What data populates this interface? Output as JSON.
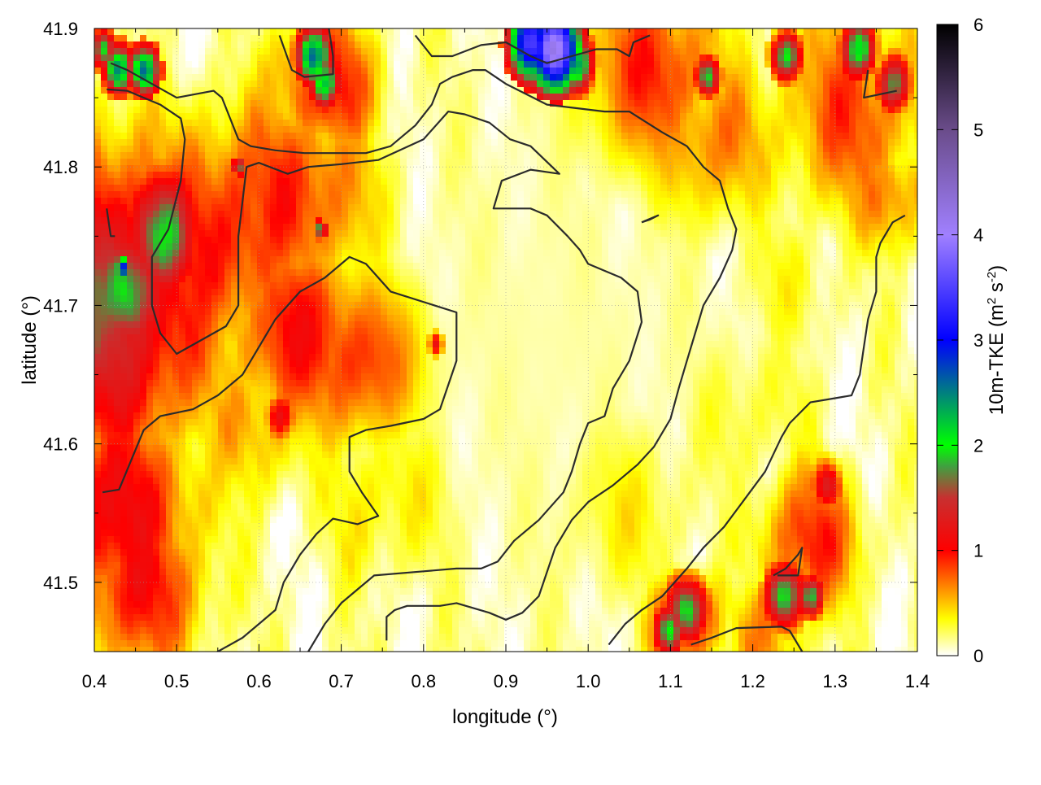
{
  "chart_data": {
    "type": "heatmap",
    "title": "",
    "xlabel": "longitude (°)",
    "ylabel": "latitude (°)",
    "colorbar_label_main": "10m-TKE (m",
    "colorbar_label_sup1": "2",
    "colorbar_label_mid": " s",
    "colorbar_label_sup2": "-2",
    "colorbar_label_end": ")",
    "xlim": [
      0.4,
      1.4
    ],
    "ylim": [
      41.45,
      41.9
    ],
    "clim": [
      0,
      6
    ],
    "grid": true,
    "x_ticks": [
      "0.4",
      "0.5",
      "0.6",
      "0.7",
      "0.8",
      "0.9",
      "1.0",
      "1.1",
      "1.2",
      "1.3",
      "1.4"
    ],
    "y_ticks": [
      "41.5",
      "41.6",
      "41.7",
      "41.8",
      "41.9"
    ],
    "colorbar_ticks": [
      "0",
      "1",
      "2",
      "3",
      "4",
      "5",
      "6"
    ],
    "colormap": [
      [
        0.0,
        "#ffffff"
      ],
      [
        0.35,
        "#ffff00"
      ],
      [
        0.65,
        "#ff8800"
      ],
      [
        1.0,
        "#ff0000"
      ],
      [
        1.5,
        "#c83030"
      ],
      [
        1.8,
        "#40a040"
      ],
      [
        2.0,
        "#00ff00"
      ],
      [
        3.0,
        "#0000ff"
      ],
      [
        4.0,
        "#a080ff"
      ],
      [
        5.0,
        "#6a4c8a"
      ],
      [
        6.0,
        "#000000"
      ]
    ],
    "field_features": [
      {
        "lon": 0.4,
        "lat": 41.7,
        "value": 1.5,
        "radius": 0.13
      },
      {
        "lon": 0.44,
        "lat": 41.7,
        "value": 0.7,
        "radius": 0.06
      },
      {
        "lon": 0.42,
        "lat": 41.55,
        "value": 1.1,
        "radius": 0.1
      },
      {
        "lon": 0.55,
        "lat": 41.75,
        "value": 1.0,
        "radius": 0.1
      },
      {
        "lon": 0.64,
        "lat": 41.78,
        "value": 0.9,
        "radius": 0.09
      },
      {
        "lon": 0.65,
        "lat": 41.68,
        "value": 1.0,
        "radius": 0.08
      },
      {
        "lon": 0.72,
        "lat": 41.66,
        "value": 0.9,
        "radius": 0.07
      },
      {
        "lon": 0.6,
        "lat": 41.62,
        "value": 0.6,
        "radius": 0.07
      },
      {
        "lon": 0.45,
        "lat": 41.5,
        "value": 1.0,
        "radius": 0.08
      },
      {
        "lon": 0.75,
        "lat": 41.56,
        "value": 0.4,
        "radius": 0.08
      },
      {
        "lon": 0.68,
        "lat": 41.86,
        "value": 1.0,
        "radius": 0.06
      },
      {
        "lon": 1.08,
        "lat": 41.87,
        "value": 0.9,
        "radius": 0.08
      },
      {
        "lon": 1.15,
        "lat": 41.82,
        "value": 0.7,
        "radius": 0.07
      },
      {
        "lon": 1.32,
        "lat": 41.84,
        "value": 0.8,
        "radius": 0.09
      },
      {
        "lon": 1.37,
        "lat": 41.78,
        "value": 0.7,
        "radius": 0.05
      },
      {
        "lon": 1.27,
        "lat": 41.53,
        "value": 0.9,
        "radius": 0.06
      },
      {
        "lon": 1.12,
        "lat": 41.47,
        "value": 1.0,
        "radius": 0.04
      },
      {
        "lon": 1.22,
        "lat": 41.46,
        "value": 0.6,
        "radius": 0.05
      },
      {
        "lon": 1.05,
        "lat": 41.55,
        "value": 0.35,
        "radius": 0.08
      },
      {
        "lon": 1.2,
        "lat": 41.62,
        "value": 0.3,
        "radius": 0.08
      },
      {
        "lon": 1.25,
        "lat": 41.72,
        "value": 0.3,
        "radius": 0.07
      }
    ],
    "hotspots": [
      {
        "lon": 0.44,
        "lat": 41.71,
        "value": 2.0,
        "radius": 0.03
      },
      {
        "lon": 0.48,
        "lat": 41.75,
        "value": 1.9,
        "radius": 0.03
      },
      {
        "lon": 0.435,
        "lat": 41.727,
        "value": 3.0,
        "radius": 0.006
      },
      {
        "lon": 0.43,
        "lat": 41.87,
        "value": 2.5,
        "radius": 0.012
      },
      {
        "lon": 0.46,
        "lat": 41.87,
        "value": 2.5,
        "radius": 0.012
      },
      {
        "lon": 0.41,
        "lat": 41.885,
        "value": 2.0,
        "radius": 0.01
      },
      {
        "lon": 0.665,
        "lat": 41.88,
        "value": 2.6,
        "radius": 0.014
      },
      {
        "lon": 0.68,
        "lat": 41.86,
        "value": 2.2,
        "radius": 0.012
      },
      {
        "lon": 0.93,
        "lat": 41.89,
        "value": 3.4,
        "radius": 0.018
      },
      {
        "lon": 0.96,
        "lat": 41.885,
        "value": 4.2,
        "radius": 0.02
      },
      {
        "lon": 0.985,
        "lat": 41.875,
        "value": 2.4,
        "radius": 0.014
      },
      {
        "lon": 1.24,
        "lat": 41.88,
        "value": 2.1,
        "radius": 0.012
      },
      {
        "lon": 1.33,
        "lat": 41.885,
        "value": 2.1,
        "radius": 0.014
      },
      {
        "lon": 1.37,
        "lat": 41.86,
        "value": 1.8,
        "radius": 0.014
      },
      {
        "lon": 1.145,
        "lat": 41.865,
        "value": 2.0,
        "radius": 0.01
      },
      {
        "lon": 1.12,
        "lat": 41.48,
        "value": 2.1,
        "radius": 0.016
      },
      {
        "lon": 1.1,
        "lat": 41.465,
        "value": 2.0,
        "radius": 0.012
      },
      {
        "lon": 1.24,
        "lat": 41.49,
        "value": 2.1,
        "radius": 0.016
      },
      {
        "lon": 1.27,
        "lat": 41.49,
        "value": 1.9,
        "radius": 0.01
      },
      {
        "lon": 0.675,
        "lat": 41.755,
        "value": 2.0,
        "radius": 0.005
      },
      {
        "lon": 0.575,
        "lat": 41.8,
        "value": 1.8,
        "radius": 0.005
      },
      {
        "lon": 0.815,
        "lat": 41.672,
        "value": 1.2,
        "radius": 0.006
      },
      {
        "lon": 0.625,
        "lat": 41.62,
        "value": 1.2,
        "radius": 0.012
      },
      {
        "lon": 1.29,
        "lat": 41.57,
        "value": 1.3,
        "radius": 0.012
      }
    ],
    "contours": [
      [
        [
          0.41,
          41.565
        ],
        [
          0.43,
          41.567
        ],
        [
          0.46,
          41.61
        ],
        [
          0.48,
          41.62
        ],
        [
          0.52,
          41.625
        ],
        [
          0.55,
          41.635
        ],
        [
          0.58,
          41.65
        ],
        [
          0.62,
          41.69
        ],
        [
          0.65,
          41.71
        ],
        [
          0.68,
          41.72
        ],
        [
          0.71,
          41.735
        ],
        [
          0.73,
          41.73
        ],
        [
          0.76,
          41.71
        ],
        [
          0.84,
          41.695
        ],
        [
          0.84,
          41.66
        ],
        [
          0.82,
          41.625
        ],
        [
          0.8,
          41.618
        ],
        [
          0.76,
          41.613
        ],
        [
          0.73,
          41.61
        ],
        [
          0.71,
          41.605
        ],
        [
          0.71,
          41.58
        ],
        [
          0.725,
          41.565
        ],
        [
          0.745,
          41.548
        ],
        [
          0.72,
          41.542
        ],
        [
          0.69,
          41.546
        ],
        [
          0.67,
          41.535
        ],
        [
          0.65,
          41.52
        ],
        [
          0.63,
          41.5
        ],
        [
          0.62,
          41.48
        ],
        [
          0.6,
          41.47
        ],
        [
          0.58,
          41.46
        ],
        [
          0.55,
          41.45
        ],
        [
          0.525,
          41.443
        ]
      ],
      [
        [
          0.415,
          41.856
        ],
        [
          0.44,
          41.855
        ],
        [
          0.48,
          41.845
        ],
        [
          0.505,
          41.835
        ],
        [
          0.51,
          41.82
        ],
        [
          0.505,
          41.79
        ],
        [
          0.49,
          41.755
        ],
        [
          0.47,
          41.735
        ],
        [
          0.47,
          41.7
        ],
        [
          0.48,
          41.68
        ],
        [
          0.5,
          41.665
        ],
        [
          0.53,
          41.675
        ],
        [
          0.56,
          41.685
        ],
        [
          0.575,
          41.7
        ],
        [
          0.575,
          41.735
        ],
        [
          0.575,
          41.75
        ],
        [
          0.585,
          41.8
        ],
        [
          0.6,
          41.803
        ],
        [
          0.635,
          41.795
        ],
        [
          0.66,
          41.8
        ],
        [
          0.7,
          41.802
        ],
        [
          0.745,
          41.805
        ],
        [
          0.8,
          41.82
        ],
        [
          0.83,
          41.84
        ],
        [
          0.85,
          41.838
        ],
        [
          0.88,
          41.832
        ],
        [
          0.905,
          41.82
        ],
        [
          0.93,
          41.815
        ],
        [
          0.965,
          41.795
        ],
        [
          0.93,
          41.798
        ],
        [
          0.895,
          41.79
        ],
        [
          0.885,
          41.77
        ],
        [
          0.91,
          41.77
        ],
        [
          0.93,
          41.77
        ],
        [
          0.95,
          41.765
        ],
        [
          0.975,
          41.75
        ],
        [
          0.99,
          41.74
        ],
        [
          1.0,
          41.73
        ],
        [
          1.02,
          41.725
        ],
        [
          1.04,
          41.72
        ],
        [
          1.06,
          41.71
        ],
        [
          1.065,
          41.688
        ],
        [
          1.05,
          41.66
        ],
        [
          1.03,
          41.64
        ],
        [
          1.02,
          41.62
        ],
        [
          1.0,
          41.615
        ],
        [
          0.99,
          41.6
        ],
        [
          0.98,
          41.58
        ],
        [
          0.97,
          41.565
        ],
        [
          0.94,
          41.545
        ],
        [
          0.91,
          41.53
        ],
        [
          0.89,
          41.515
        ],
        [
          0.87,
          41.51
        ],
        [
          0.84,
          41.51
        ],
        [
          0.8,
          41.508
        ],
        [
          0.74,
          41.505
        ],
        [
          0.72,
          41.495
        ],
        [
          0.7,
          41.485
        ],
        [
          0.68,
          41.47
        ],
        [
          0.66,
          41.45
        ]
      ],
      [
        [
          0.755,
          41.458
        ],
        [
          0.755,
          41.475
        ],
        [
          0.765,
          41.48
        ],
        [
          0.78,
          41.483
        ],
        [
          0.82,
          41.483
        ],
        [
          0.84,
          41.485
        ],
        [
          0.88,
          41.478
        ],
        [
          0.9,
          41.473
        ],
        [
          0.92,
          41.478
        ],
        [
          0.94,
          41.49
        ],
        [
          0.96,
          41.525
        ],
        [
          0.98,
          41.545
        ],
        [
          1.0,
          41.558
        ],
        [
          1.03,
          41.57
        ],
        [
          1.06,
          41.585
        ],
        [
          1.08,
          41.598
        ],
        [
          1.1,
          41.618
        ],
        [
          1.11,
          41.64
        ],
        [
          1.12,
          41.66
        ],
        [
          1.13,
          41.68
        ],
        [
          1.14,
          41.7
        ],
        [
          1.15,
          41.71
        ],
        [
          1.16,
          41.72
        ],
        [
          1.175,
          41.74
        ],
        [
          1.18,
          41.755
        ],
        [
          1.17,
          41.77
        ],
        [
          1.16,
          41.79
        ],
        [
          1.14,
          41.8
        ],
        [
          1.12,
          41.815
        ],
        [
          1.09,
          41.825
        ],
        [
          1.05,
          41.84
        ],
        [
          1.02,
          41.84
        ],
        [
          0.95,
          41.845
        ],
        [
          0.9,
          41.86
        ],
        [
          0.875,
          41.87
        ],
        [
          0.86,
          41.87
        ],
        [
          0.835,
          41.865
        ],
        [
          0.82,
          41.86
        ],
        [
          0.81,
          41.845
        ],
        [
          0.79,
          41.83
        ],
        [
          0.77,
          41.82
        ],
        [
          0.76,
          41.815
        ],
        [
          0.73,
          41.81
        ],
        [
          0.7,
          41.81
        ],
        [
          0.68,
          41.81
        ],
        [
          0.655,
          41.81
        ],
        [
          0.62,
          41.812
        ],
        [
          0.59,
          41.815
        ],
        [
          0.575,
          41.82
        ],
        [
          0.565,
          41.835
        ],
        [
          0.555,
          41.85
        ],
        [
          0.545,
          41.855
        ],
        [
          0.5,
          41.85
        ],
        [
          0.47,
          41.86
        ],
        [
          0.44,
          41.87
        ],
        [
          0.42,
          41.875
        ]
      ],
      [
        [
          0.625,
          41.895
        ],
        [
          0.64,
          41.87
        ],
        [
          0.655,
          41.865
        ],
        [
          0.69,
          41.867
        ],
        [
          0.69,
          41.88
        ],
        [
          0.685,
          41.9
        ]
      ],
      [
        [
          0.79,
          41.895
        ],
        [
          0.81,
          41.88
        ],
        [
          0.835,
          41.88
        ],
        [
          0.87,
          41.888
        ],
        [
          0.9,
          41.89
        ],
        [
          0.93,
          41.88
        ],
        [
          0.95,
          41.875
        ],
        [
          0.98,
          41.88
        ],
        [
          1.01,
          41.885
        ],
        [
          1.035,
          41.885
        ],
        [
          1.05,
          41.88
        ],
        [
          1.055,
          41.89
        ],
        [
          1.075,
          41.895
        ]
      ],
      [
        [
          1.34,
          41.87
        ],
        [
          1.335,
          41.85
        ],
        [
          1.375,
          41.855
        ]
      ],
      [
        [
          1.065,
          41.76
        ],
        [
          1.085,
          41.765
        ],
        [
          1.075,
          41.762
        ],
        [
          1.065,
          41.76
        ]
      ],
      [
        [
          0.415,
          41.77
        ],
        [
          0.42,
          41.75
        ],
        [
          0.425,
          41.75
        ]
      ],
      [
        [
          1.025,
          41.455
        ],
        [
          1.045,
          41.47
        ],
        [
          1.065,
          41.48
        ],
        [
          1.09,
          41.49
        ],
        [
          1.12,
          41.51
        ],
        [
          1.14,
          41.525
        ],
        [
          1.165,
          41.54
        ],
        [
          1.19,
          41.56
        ],
        [
          1.215,
          41.58
        ],
        [
          1.235,
          41.605
        ],
        [
          1.245,
          41.615
        ],
        [
          1.27,
          41.63
        ],
        [
          1.3,
          41.633
        ],
        [
          1.32,
          41.635
        ],
        [
          1.33,
          41.65
        ],
        [
          1.335,
          41.67
        ],
        [
          1.34,
          41.69
        ],
        [
          1.35,
          41.71
        ],
        [
          1.35,
          41.735
        ],
        [
          1.355,
          41.745
        ],
        [
          1.37,
          41.76
        ],
        [
          1.385,
          41.765
        ]
      ],
      [
        [
          1.125,
          41.455
        ],
        [
          1.15,
          41.46
        ],
        [
          1.18,
          41.467
        ],
        [
          1.235,
          41.468
        ],
        [
          1.245,
          41.465
        ],
        [
          1.26,
          41.45
        ]
      ],
      [
        [
          1.225,
          41.505
        ],
        [
          1.24,
          41.51
        ],
        [
          1.255,
          41.52
        ],
        [
          1.26,
          41.525
        ],
        [
          1.255,
          41.505
        ],
        [
          1.23,
          41.505
        ]
      ],
      [
        [
          1.32,
          41.45
        ],
        [
          1.325,
          41.445
        ]
      ]
    ]
  }
}
